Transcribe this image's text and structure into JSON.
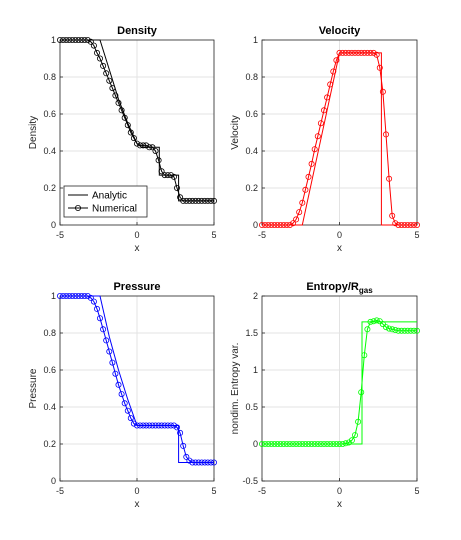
{
  "chart_data": [
    {
      "type": "line",
      "title": "Density",
      "xlabel": "x",
      "ylabel": "Density",
      "xlim": [
        -5,
        5
      ],
      "ylim": [
        0,
        1
      ],
      "xticks": [
        -5,
        0,
        5
      ],
      "yticks": [
        0,
        0.2,
        0.4,
        0.6,
        0.8,
        1
      ],
      "ytick_labels": [
        "0",
        "0.2",
        "0.4",
        "0.6",
        "0.8",
        "1"
      ],
      "grid": true,
      "color": "#000000",
      "legend": {
        "position": "bottom-left",
        "entries": [
          "Analytic",
          "Numerical"
        ]
      },
      "series": [
        {
          "name": "Analytic",
          "style": "line",
          "x": [
            -5,
            -2.4,
            -1.8,
            -1.2,
            -0.6,
            0,
            0.3,
            1.45,
            1.45,
            2.7,
            2.7,
            5
          ],
          "y": [
            1,
            1,
            0.84,
            0.68,
            0.55,
            0.44,
            0.42,
            0.42,
            0.27,
            0.27,
            0.13,
            0.13
          ]
        },
        {
          "name": "Numerical",
          "style": "markers-line",
          "x": [
            -5,
            -4.8,
            -4.6,
            -4.4,
            -4.2,
            -4,
            -3.8,
            -3.6,
            -3.4,
            -3.2,
            -3,
            -2.8,
            -2.6,
            -2.4,
            -2.2,
            -2,
            -1.8,
            -1.6,
            -1.4,
            -1.2,
            -1,
            -0.8,
            -0.6,
            -0.4,
            -0.2,
            0,
            0.2,
            0.4,
            0.6,
            0.8,
            1,
            1.2,
            1.4,
            1.6,
            1.8,
            2,
            2.2,
            2.4,
            2.6,
            2.8,
            3,
            3.2,
            3.4,
            3.6,
            3.8,
            4,
            4.2,
            4.4,
            4.6,
            4.8,
            5
          ],
          "y": [
            1,
            1,
            1,
            1,
            1,
            1,
            1,
            1,
            1,
            1,
            0.99,
            0.97,
            0.93,
            0.9,
            0.86,
            0.82,
            0.78,
            0.74,
            0.7,
            0.66,
            0.62,
            0.58,
            0.54,
            0.5,
            0.47,
            0.44,
            0.43,
            0.43,
            0.43,
            0.42,
            0.42,
            0.4,
            0.35,
            0.29,
            0.27,
            0.27,
            0.27,
            0.26,
            0.2,
            0.15,
            0.13,
            0.13,
            0.13,
            0.13,
            0.13,
            0.13,
            0.13,
            0.13,
            0.13,
            0.13,
            0.13
          ]
        }
      ]
    },
    {
      "type": "line",
      "title": "Velocity",
      "xlabel": "x",
      "ylabel": "Velocity",
      "xlim": [
        -5,
        5
      ],
      "ylim": [
        0,
        1
      ],
      "xticks": [
        -5,
        0,
        5
      ],
      "yticks": [
        0,
        0.2,
        0.4,
        0.6,
        0.8,
        1
      ],
      "ytick_labels": [
        "0",
        "0.2",
        "0.4",
        "0.6",
        "0.8",
        "1"
      ],
      "grid": true,
      "color": "#ff0000",
      "series": [
        {
          "name": "Analytic",
          "style": "line",
          "x": [
            -5,
            -2.4,
            0,
            2.7,
            2.7,
            5
          ],
          "y": [
            0,
            0,
            0.93,
            0.93,
            0,
            0
          ]
        },
        {
          "name": "Numerical",
          "style": "markers-line",
          "x": [
            -5,
            -4.8,
            -4.6,
            -4.4,
            -4.2,
            -4,
            -3.8,
            -3.6,
            -3.4,
            -3.2,
            -3,
            -2.8,
            -2.6,
            -2.4,
            -2.2,
            -2,
            -1.8,
            -1.6,
            -1.4,
            -1.2,
            -1,
            -0.8,
            -0.6,
            -0.4,
            -0.2,
            0,
            0.2,
            0.4,
            0.6,
            0.8,
            1,
            1.2,
            1.4,
            1.6,
            1.8,
            2,
            2.2,
            2.4,
            2.6,
            2.8,
            3,
            3.2,
            3.4,
            3.6,
            3.8,
            4,
            4.2,
            4.4,
            4.6,
            4.8,
            5
          ],
          "y": [
            0,
            0,
            0,
            0,
            0,
            0,
            0,
            0,
            0,
            0,
            0.01,
            0.03,
            0.07,
            0.12,
            0.19,
            0.26,
            0.33,
            0.41,
            0.48,
            0.55,
            0.62,
            0.69,
            0.76,
            0.83,
            0.89,
            0.93,
            0.93,
            0.93,
            0.93,
            0.93,
            0.93,
            0.93,
            0.93,
            0.93,
            0.93,
            0.93,
            0.93,
            0.92,
            0.85,
            0.72,
            0.49,
            0.25,
            0.05,
            0.01,
            0,
            0,
            0,
            0,
            0,
            0,
            0
          ]
        }
      ]
    },
    {
      "type": "line",
      "title": "Pressure",
      "xlabel": "x",
      "ylabel": "Pressure",
      "xlim": [
        -5,
        5
      ],
      "ylim": [
        0,
        1
      ],
      "xticks": [
        -5,
        0,
        5
      ],
      "yticks": [
        0,
        0.2,
        0.4,
        0.6,
        0.8,
        1
      ],
      "ytick_labels": [
        "0",
        "0.2",
        "0.4",
        "0.6",
        "0.8",
        "1"
      ],
      "grid": true,
      "color": "#0000ff",
      "series": [
        {
          "name": "Analytic",
          "style": "line",
          "x": [
            -5,
            -2.4,
            -1.8,
            -1.2,
            -0.6,
            0,
            2.7,
            2.7,
            5
          ],
          "y": [
            1,
            1,
            0.78,
            0.6,
            0.44,
            0.3,
            0.3,
            0.1,
            0.1
          ]
        },
        {
          "name": "Numerical",
          "style": "markers-line",
          "x": [
            -5,
            -4.8,
            -4.6,
            -4.4,
            -4.2,
            -4,
            -3.8,
            -3.6,
            -3.4,
            -3.2,
            -3,
            -2.8,
            -2.6,
            -2.4,
            -2.2,
            -2,
            -1.8,
            -1.6,
            -1.4,
            -1.2,
            -1,
            -0.8,
            -0.6,
            -0.4,
            -0.2,
            0,
            0.2,
            0.4,
            0.6,
            0.8,
            1,
            1.2,
            1.4,
            1.6,
            1.8,
            2,
            2.2,
            2.4,
            2.6,
            2.8,
            3,
            3.2,
            3.4,
            3.6,
            3.8,
            4,
            4.2,
            4.4,
            4.6,
            4.8,
            5
          ],
          "y": [
            1,
            1,
            1,
            1,
            1,
            1,
            1,
            1,
            1,
            1,
            0.99,
            0.97,
            0.93,
            0.88,
            0.82,
            0.76,
            0.7,
            0.64,
            0.58,
            0.52,
            0.47,
            0.42,
            0.38,
            0.34,
            0.31,
            0.3,
            0.3,
            0.3,
            0.3,
            0.3,
            0.3,
            0.3,
            0.3,
            0.3,
            0.3,
            0.3,
            0.3,
            0.3,
            0.29,
            0.26,
            0.19,
            0.13,
            0.11,
            0.1,
            0.1,
            0.1,
            0.1,
            0.1,
            0.1,
            0.1,
            0.1
          ]
        }
      ]
    },
    {
      "type": "line",
      "title": "Entropy/R",
      "title_subscript": "gas",
      "xlabel": "x",
      "ylabel": "nondim. Entropy var.",
      "xlim": [
        -5,
        5
      ],
      "ylim": [
        -0.5,
        2
      ],
      "xticks": [
        -5,
        0,
        5
      ],
      "yticks": [
        -0.5,
        0,
        0.5,
        1,
        1.5,
        2
      ],
      "ytick_labels": [
        "-0.5",
        "0",
        "0.5",
        "1",
        "1.5",
        "2"
      ],
      "grid": true,
      "color": "#00ff00",
      "series": [
        {
          "name": "Analytic",
          "style": "line",
          "x": [
            -5,
            1.45,
            1.45,
            5
          ],
          "y": [
            0,
            0,
            1.65,
            1.65
          ]
        },
        {
          "name": "Numerical",
          "style": "markers-line",
          "x": [
            -5,
            -4.8,
            -4.6,
            -4.4,
            -4.2,
            -4,
            -3.8,
            -3.6,
            -3.4,
            -3.2,
            -3,
            -2.8,
            -2.6,
            -2.4,
            -2.2,
            -2,
            -1.8,
            -1.6,
            -1.4,
            -1.2,
            -1,
            -0.8,
            -0.6,
            -0.4,
            -0.2,
            0,
            0.2,
            0.4,
            0.6,
            0.8,
            1,
            1.2,
            1.4,
            1.6,
            1.8,
            2,
            2.2,
            2.4,
            2.6,
            2.8,
            3,
            3.2,
            3.4,
            3.6,
            3.8,
            4,
            4.2,
            4.4,
            4.6,
            4.8,
            5
          ],
          "y": [
            0,
            0,
            0,
            0,
            0,
            0,
            0,
            0,
            0,
            0,
            0,
            0,
            0,
            0,
            0,
            0,
            0,
            0,
            0,
            0,
            0,
            0,
            0,
            0,
            0,
            0,
            0,
            0.01,
            0.02,
            0.05,
            0.12,
            0.3,
            0.7,
            1.2,
            1.55,
            1.65,
            1.66,
            1.67,
            1.66,
            1.62,
            1.58,
            1.56,
            1.55,
            1.54,
            1.53,
            1.53,
            1.53,
            1.53,
            1.53,
            1.53,
            1.53
          ]
        }
      ]
    }
  ]
}
